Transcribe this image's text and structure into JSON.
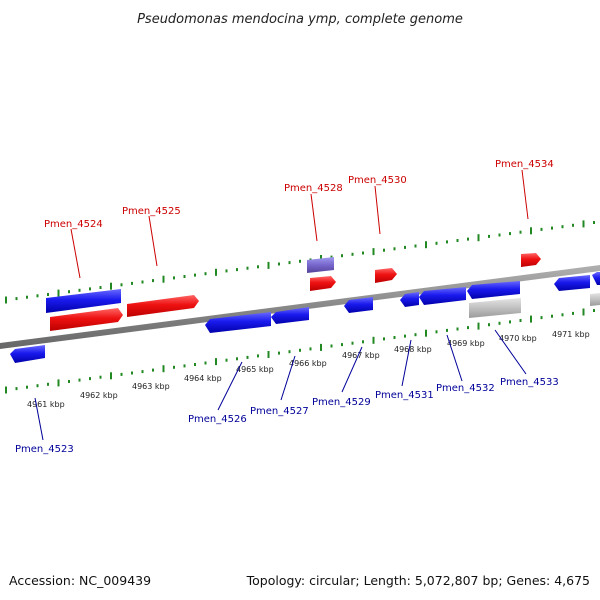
{
  "title": "Pseudomonas mendocina ymp, complete genome",
  "footer": {
    "accession": "Accession: NC_009439",
    "topology": "Topology: circular; Length: 5,072,807 bp; Genes: 4,675"
  },
  "colors": {
    "forward_gene": "#ee1111",
    "reverse_gene": "#1a1aee",
    "rna_gene": "#7766cc",
    "pseudo_gene": "#c0c0c0",
    "backbone": "#888888",
    "ticks": "#228822",
    "label_forward": "#cc0000",
    "label_reverse": "#000099"
  },
  "scale_labels": [
    "4961 kbp",
    "4962 kbp",
    "4963 kbp",
    "4964 kbp",
    "4965 kbp",
    "4966 kbp",
    "4967 kbp",
    "4968 kbp",
    "4969 kbp",
    "4970 kbp",
    "4971 kbp"
  ],
  "gene_labels": [
    {
      "id": "Pmen_4523",
      "strand": "reverse"
    },
    {
      "id": "Pmen_4524",
      "strand": "forward"
    },
    {
      "id": "Pmen_4525",
      "strand": "forward"
    },
    {
      "id": "Pmen_4526",
      "strand": "reverse"
    },
    {
      "id": "Pmen_4527",
      "strand": "reverse"
    },
    {
      "id": "Pmen_4528",
      "strand": "forward"
    },
    {
      "id": "Pmen_4529",
      "strand": "reverse"
    },
    {
      "id": "Pmen_4530",
      "strand": "forward"
    },
    {
      "id": "Pmen_4531",
      "strand": "reverse"
    },
    {
      "id": "Pmen_4532",
      "strand": "reverse"
    },
    {
      "id": "Pmen_4533",
      "strand": "reverse"
    },
    {
      "id": "Pmen_4534",
      "strand": "forward"
    }
  ]
}
